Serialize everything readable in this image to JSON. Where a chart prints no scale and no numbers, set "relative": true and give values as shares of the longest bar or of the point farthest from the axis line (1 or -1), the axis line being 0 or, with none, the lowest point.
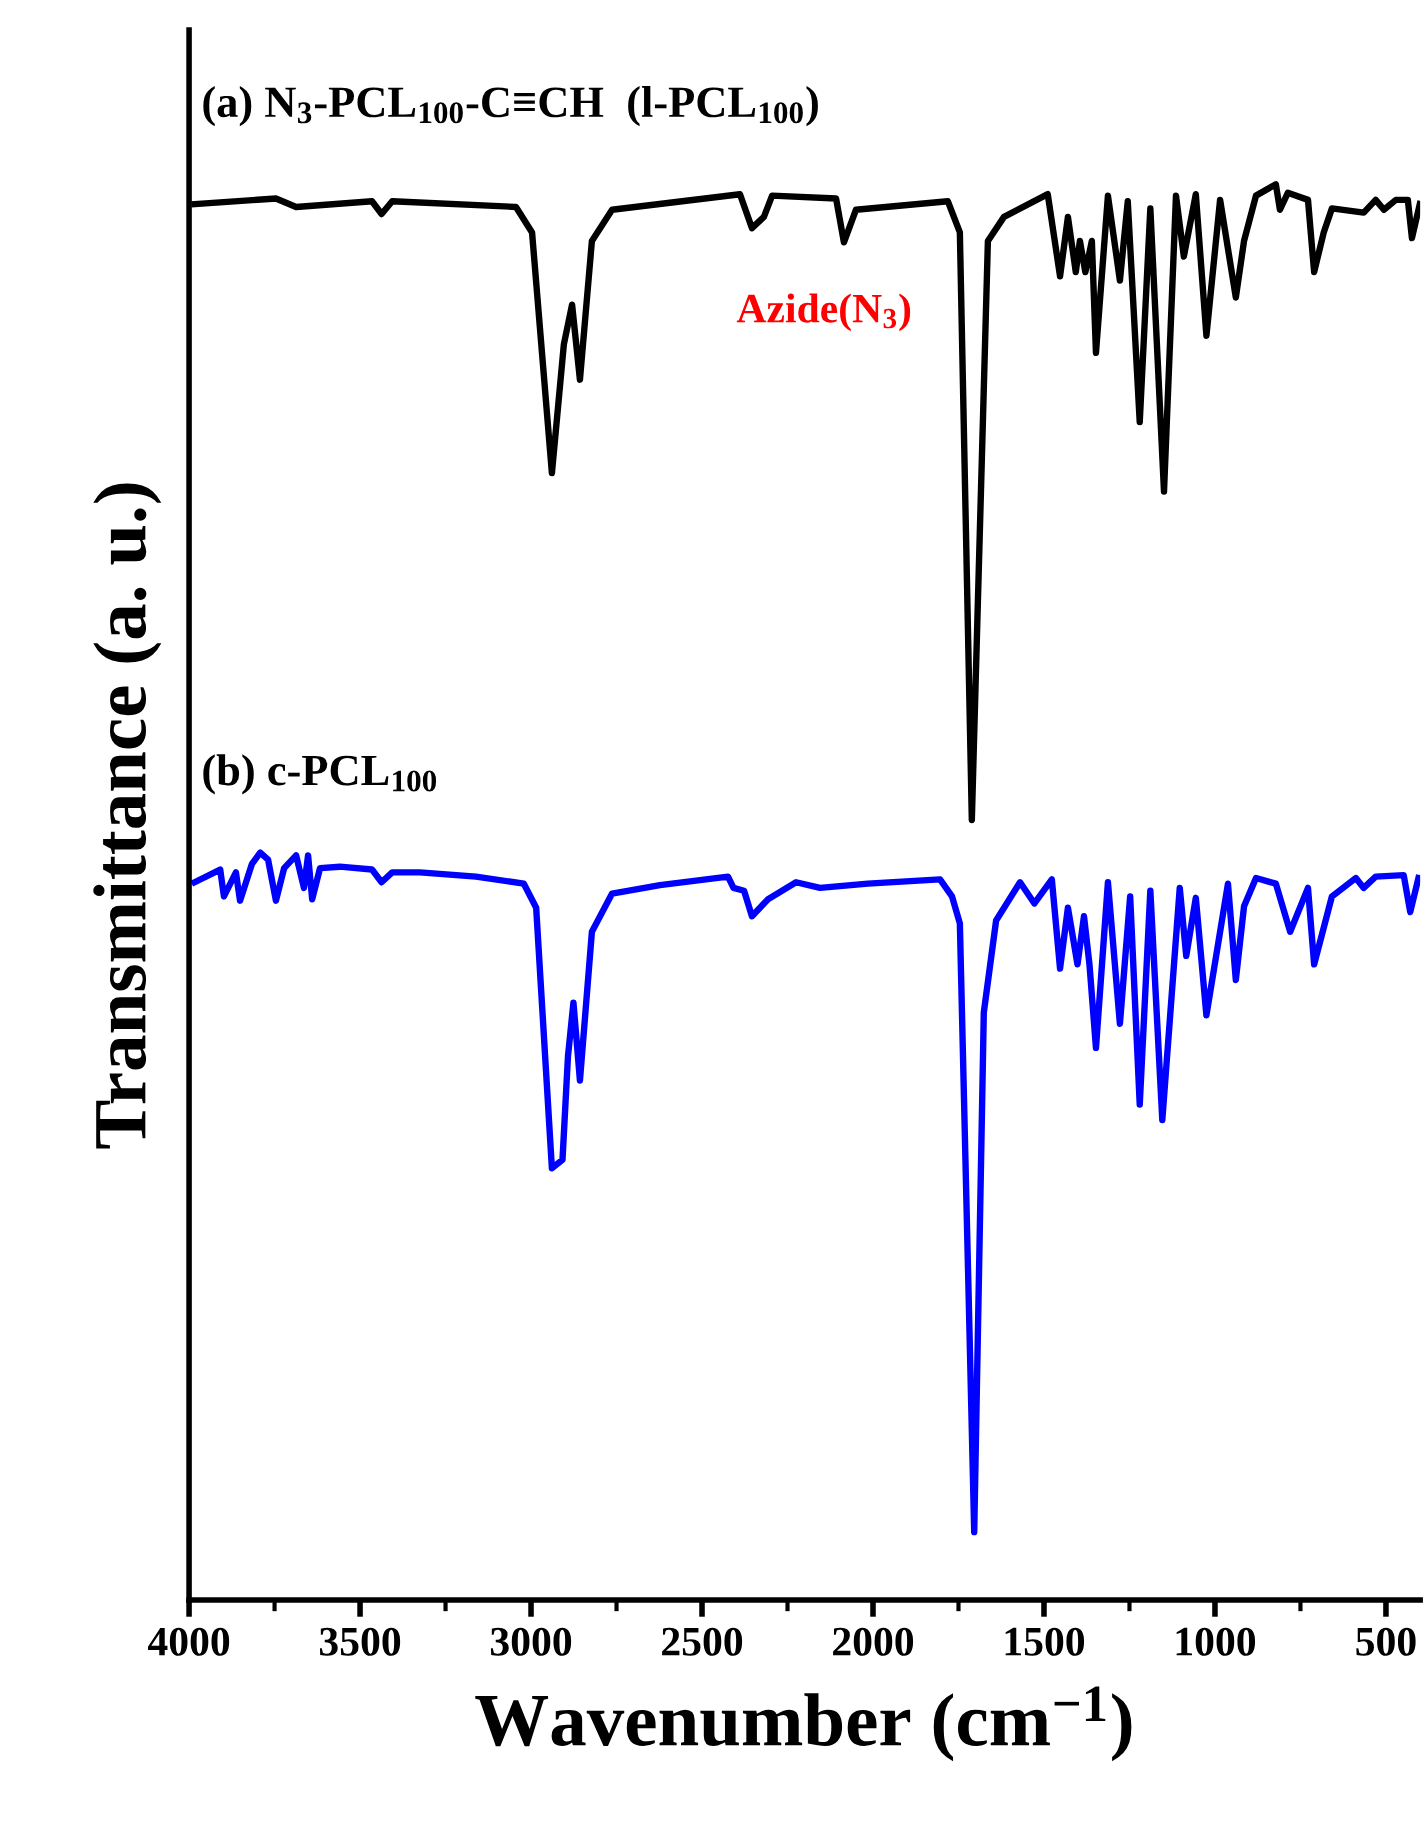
{
  "chart_data": {
    "type": "line",
    "relative": true,
    "xlabel": "Wavenumber (cm$^{−1}$)",
    "ylabel": "Transmittance (a. u.)",
    "annotations": [
      "Azide(N$_{3}$)"
    ],
    "xlim": [
      4000,
      400
    ],
    "xticks": [
      4000,
      3500,
      3000,
      2500,
      2000,
      1500,
      1000,
      500
    ],
    "grid": false,
    "legend": false,
    "marker": "none",
    "line_style": "solid",
    "series": [
      {
        "name": "(a) N$_{3}$-PCL$_{100}$-C≡CH  (l-PCL$_{100}$)",
        "color": "#000000",
        "x": [
          3984,
          3746,
          3687,
          3465,
          3437,
          3406,
          3044,
          2997,
          2939,
          2904,
          2880,
          2857,
          2822,
          2763,
          2389,
          2354,
          2319,
          2295,
          2108,
          2085,
          2050,
          1781,
          1746,
          1711,
          1664,
          1617,
          1489,
          1453,
          1430,
          1407,
          1395,
          1379,
          1360,
          1348,
          1313,
          1278,
          1255,
          1220,
          1189,
          1149,
          1114,
          1091,
          1056,
          1025,
          985,
          939,
          915,
          880,
          822,
          810,
          787,
          728,
          710,
          682,
          658,
          565,
          530,
          506,
          471,
          436,
          424,
          401
        ],
        "values": [
          0.986,
          0.99,
          0.984,
          0.988,
          0.979,
          0.988,
          0.984,
          0.966,
          0.796,
          0.887,
          0.915,
          0.862,
          0.96,
          0.982,
          0.993,
          0.969,
          0.977,
          0.992,
          0.99,
          0.959,
          0.982,
          0.988,
          0.966,
          0.551,
          0.96,
          0.977,
          0.993,
          0.935,
          0.977,
          0.938,
          0.96,
          0.938,
          0.96,
          0.881,
          0.992,
          0.932,
          0.988,
          0.832,
          0.983,
          0.783,
          0.992,
          0.949,
          0.993,
          0.893,
          0.989,
          0.92,
          0.96,
          0.992,
          1.0,
          0.982,
          0.994,
          0.989,
          0.938,
          0.966,
          0.983,
          0.98,
          0.989,
          0.982,
          0.989,
          0.989,
          0.962,
          0.986
        ]
      },
      {
        "name": "(b) c-PCL$_{100}$",
        "color": "#0000ff",
        "x": [
          3984,
          3909,
          3898,
          3863,
          3851,
          3816,
          3792,
          3769,
          3746,
          3722,
          3687,
          3664,
          3652,
          3640,
          3617,
          3559,
          3465,
          3437,
          3406,
          3325,
          3161,
          3021,
          2985,
          2939,
          2908,
          2892,
          2876,
          2857,
          2822,
          2763,
          2623,
          2424,
          2408,
          2377,
          2354,
          2307,
          2225,
          2155,
          2015,
          1804,
          1769,
          1746,
          1704,
          1676,
          1640,
          1570,
          1528,
          1477,
          1453,
          1430,
          1402,
          1383,
          1367,
          1348,
          1313,
          1278,
          1248,
          1220,
          1189,
          1154,
          1103,
          1084,
          1056,
          1025,
          962,
          939,
          915,
          880,
          822,
          780,
          728,
          710,
          658,
          588,
          565,
          530,
          448,
          429,
          405
        ],
        "values": [
          0.507,
          0.516,
          0.497,
          0.514,
          0.494,
          0.52,
          0.528,
          0.523,
          0.494,
          0.517,
          0.526,
          0.503,
          0.526,
          0.495,
          0.517,
          0.518,
          0.516,
          0.507,
          0.514,
          0.514,
          0.511,
          0.506,
          0.489,
          0.305,
          0.311,
          0.384,
          0.422,
          0.367,
          0.472,
          0.499,
          0.505,
          0.511,
          0.503,
          0.501,
          0.483,
          0.495,
          0.507,
          0.503,
          0.506,
          0.509,
          0.497,
          0.478,
          0.048,
          0.415,
          0.48,
          0.507,
          0.492,
          0.509,
          0.446,
          0.489,
          0.449,
          0.483,
          0.449,
          0.39,
          0.507,
          0.407,
          0.497,
          0.35,
          0.501,
          0.339,
          0.503,
          0.455,
          0.496,
          0.413,
          0.506,
          0.438,
          0.49,
          0.51,
          0.506,
          0.472,
          0.503,
          0.449,
          0.497,
          0.51,
          0.503,
          0.511,
          0.512,
          0.486,
          0.51
        ]
      }
    ]
  }
}
